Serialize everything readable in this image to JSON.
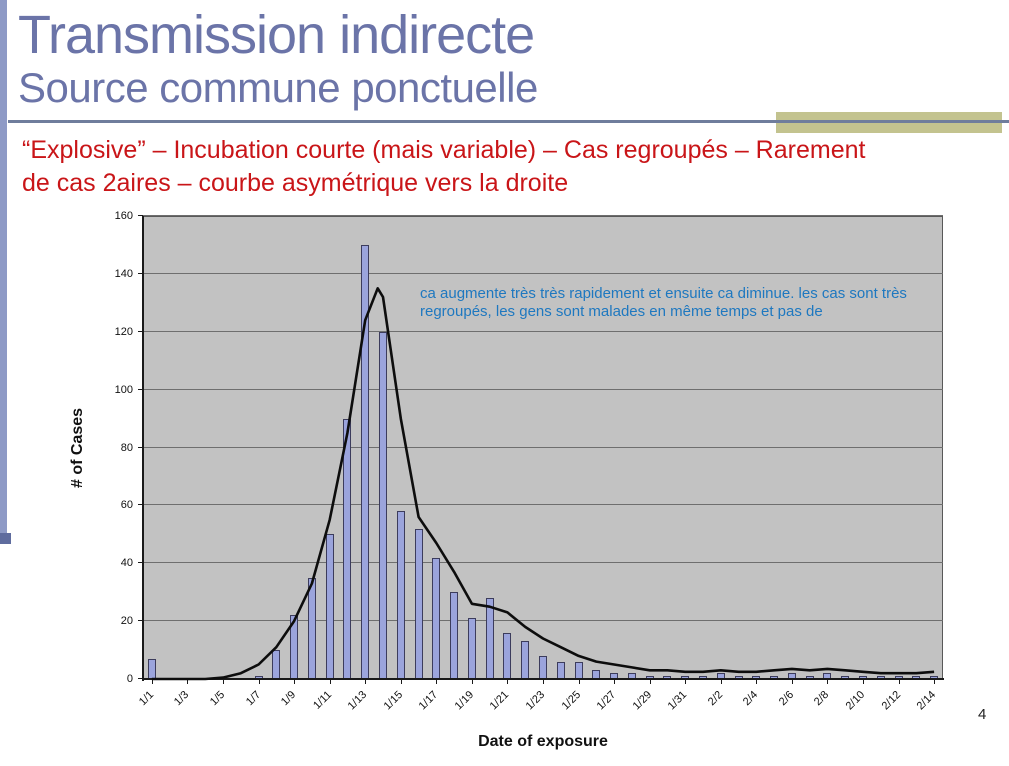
{
  "slide": {
    "title": "Transmission indirecte",
    "subtitle": "Source commune ponctuelle",
    "body_lines": [
      "“Explosive” – Incubation courte (mais variable) – Cas regroupés – Rarement",
      "de cas 2aires – courbe asymétrique vers la droite"
    ],
    "page_number": "4",
    "colors": {
      "title": "#6B74A8",
      "rule": "#6F7D9C",
      "accent_rect": "#C3C38F",
      "body_text": "#C91518",
      "stripe": "#8E9AC6",
      "stripe_cap": "#5F6C9E",
      "background": "#FFFFFF"
    }
  },
  "chart_data": {
    "type": "bar",
    "title": "",
    "xlabel": "Date of exposure",
    "ylabel": "# of Cases",
    "ylim": [
      0,
      160
    ],
    "ytick_step": 20,
    "grid": true,
    "legend": "none",
    "categories": [
      "1/1",
      "1/2",
      "1/3",
      "1/4",
      "1/5",
      "1/6",
      "1/7",
      "1/8",
      "1/9",
      "1/10",
      "1/11",
      "1/12",
      "1/13",
      "1/14",
      "1/15",
      "1/16",
      "1/17",
      "1/18",
      "1/19",
      "1/20",
      "1/21",
      "1/22",
      "1/23",
      "1/24",
      "1/25",
      "1/26",
      "1/27",
      "1/28",
      "1/29",
      "1/30",
      "1/31",
      "2/1",
      "2/2",
      "2/3",
      "2/4",
      "2/5",
      "2/6",
      "2/7",
      "2/8",
      "2/9",
      "2/10",
      "2/11",
      "2/12",
      "2/13",
      "2/14"
    ],
    "xtick_every": 2,
    "values": [
      7,
      0,
      0,
      0,
      0,
      0,
      1,
      10,
      22,
      35,
      50,
      90,
      150,
      120,
      58,
      52,
      42,
      30,
      21,
      28,
      16,
      13,
      8,
      6,
      6,
      3,
      2,
      2,
      1,
      1,
      1,
      1,
      2,
      1,
      1,
      1,
      2,
      1,
      2,
      1,
      1,
      1,
      1,
      1,
      1
    ],
    "curve": {
      "name": "epidemic-curve",
      "points": [
        [
          1,
          0
        ],
        [
          4,
          0
        ],
        [
          5,
          0.5
        ],
        [
          6,
          2
        ],
        [
          7,
          5
        ],
        [
          8,
          11
        ],
        [
          9,
          20
        ],
        [
          10,
          33
        ],
        [
          11,
          55
        ],
        [
          12,
          85
        ],
        [
          13,
          124
        ],
        [
          13.7,
          135
        ],
        [
          14,
          132
        ],
        [
          15,
          90
        ],
        [
          16,
          56
        ],
        [
          17,
          47
        ],
        [
          18,
          37
        ],
        [
          19,
          26
        ],
        [
          20,
          25
        ],
        [
          21,
          23
        ],
        [
          22,
          18
        ],
        [
          23,
          14
        ],
        [
          24,
          11
        ],
        [
          25,
          8
        ],
        [
          26,
          6
        ],
        [
          27,
          5
        ],
        [
          28,
          4
        ],
        [
          29,
          3
        ],
        [
          30,
          3
        ],
        [
          31,
          2.5
        ],
        [
          32,
          2.5
        ],
        [
          33,
          3
        ],
        [
          34,
          2.5
        ],
        [
          35,
          2.5
        ],
        [
          36,
          3
        ],
        [
          37,
          3.5
        ],
        [
          38,
          3
        ],
        [
          39,
          3.5
        ],
        [
          40,
          3
        ],
        [
          41,
          2.5
        ],
        [
          42,
          2
        ],
        [
          43,
          2
        ],
        [
          44,
          2
        ],
        [
          45,
          2.5
        ]
      ]
    },
    "annotation": {
      "lines": [
        "ca augmente très très rapidement et ensuite ca diminue. les cas sont très",
        "regroupés, les gens sont malades en même temps et pas de"
      ],
      "color": "#1E78C0"
    },
    "colors": {
      "bar_fill": "#9BA4DC",
      "bar_border": "#3C3C5C",
      "plot_bg": "#C2C2C2",
      "gridline": "#6E6E6E",
      "axis": "#1A1A1A",
      "curve": "#0D0D0D",
      "tick_label": "#111111"
    }
  }
}
